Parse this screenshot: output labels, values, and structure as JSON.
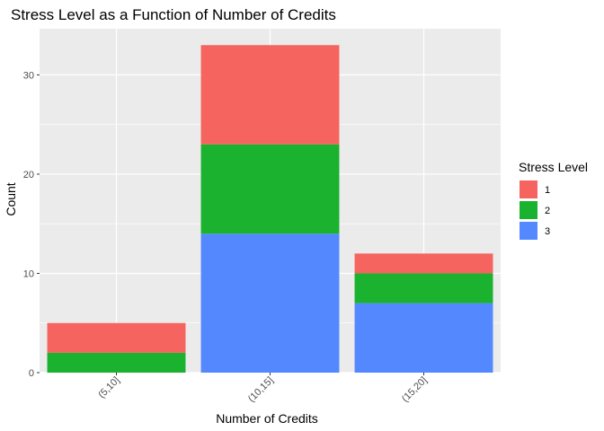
{
  "chart_data": {
    "type": "bar",
    "stacked": true,
    "title": "Stress Level as a Function of Number of Credits",
    "xlabel": "Number of Credits",
    "ylabel": "Count",
    "categories": [
      "(5,10]",
      "(10,15]",
      "(15,20]"
    ],
    "series": [
      {
        "name": "3",
        "values": [
          0,
          14,
          7
        ],
        "color": "#5388FF"
      },
      {
        "name": "2",
        "values": [
          2,
          9,
          3
        ],
        "color": "#1AB22E"
      },
      {
        "name": "1",
        "values": [
          3,
          10,
          2
        ],
        "color": "#F5645E"
      }
    ],
    "ylim": [
      0,
      34.65
    ],
    "yticks": [
      "0",
      "10",
      "20",
      "30"
    ],
    "grid": true,
    "legend": {
      "title": "Stress Level",
      "placement": "right",
      "entries": [
        {
          "label": "1",
          "color": "#F5645E"
        },
        {
          "label": "2",
          "color": "#1AB22E"
        },
        {
          "label": "3",
          "color": "#5388FF"
        }
      ]
    }
  }
}
